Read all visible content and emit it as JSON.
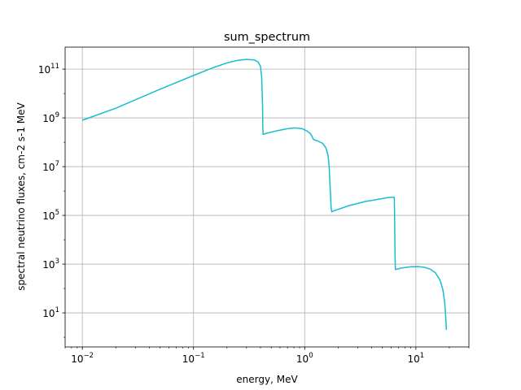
{
  "chart_data": {
    "type": "line",
    "title": "sum_spectrum",
    "xlabel": "energy, MeV",
    "ylabel": "spectral neutrino fluxes, cm-2 s-1 MeV",
    "xscale": "log",
    "yscale": "log",
    "xlim": [
      0.007,
      30
    ],
    "ylim": [
      0.4,
      800000000000
    ],
    "grid": true,
    "line_color": "#17becf",
    "x_ticks": [
      {
        "value": 0.01,
        "base": "10",
        "exp": "−2"
      },
      {
        "value": 0.1,
        "base": "10",
        "exp": "−1"
      },
      {
        "value": 1,
        "base": "10",
        "exp": "0"
      },
      {
        "value": 10,
        "base": "10",
        "exp": "1"
      }
    ],
    "y_ticks": [
      {
        "value": 10,
        "base": "10",
        "exp": "1"
      },
      {
        "value": 1000,
        "base": "10",
        "exp": "3"
      },
      {
        "value": 100000,
        "base": "10",
        "exp": "5"
      },
      {
        "value": 10000000,
        "base": "10",
        "exp": "7"
      },
      {
        "value": 1000000000,
        "base": "10",
        "exp": "9"
      },
      {
        "value": 100000000000,
        "base": "10",
        "exp": "11"
      }
    ],
    "series": [
      {
        "name": "sum_spectrum",
        "x": [
          0.01,
          0.02,
          0.05,
          0.1,
          0.15,
          0.2,
          0.25,
          0.3,
          0.35,
          0.38,
          0.4,
          0.41,
          0.418,
          0.42,
          0.423,
          0.45,
          0.55,
          0.7,
          0.82,
          0.95,
          1.05,
          1.12,
          1.16,
          1.18,
          1.2,
          1.22,
          1.3,
          1.45,
          1.55,
          1.62,
          1.66,
          1.7,
          1.73,
          1.75,
          1.8,
          2.5,
          3.5,
          4.5,
          5.5,
          6.2,
          6.4,
          6.45,
          6.5,
          6.55,
          7.5,
          9.0,
          10.5,
          12.0,
          13.5,
          15.0,
          16.5,
          17.5,
          18.2,
          18.6,
          18.8
        ],
        "y": [
          800000000.0,
          2500000000.0,
          15000000000.0,
          55000000000.0,
          115000000000.0,
          180000000000.0,
          230000000000.0,
          250000000000.0,
          240000000000.0,
          200000000000.0,
          130000000000.0,
          50000000000.0,
          3000000000.0,
          400000000.0,
          210000000.0,
          230000000.0,
          290000000.0,
          360000000.0,
          390000000.0,
          360000000.0,
          290000000.0,
          230000000.0,
          180000000.0,
          150000000.0,
          130000000.0,
          125000000.0,
          115000000.0,
          90000000.0,
          60000000.0,
          30000000.0,
          10000000.0,
          1000000.0,
          200000.0,
          140000.0,
          150000.0,
          250000.0,
          370000.0,
          450000.0,
          530000.0,
          560000.0,
          550000.0,
          50000.0,
          2000.0,
          600,
          700,
          780,
          790,
          740,
          620,
          440,
          220,
          90,
          25,
          6,
          2.0
        ]
      }
    ]
  }
}
